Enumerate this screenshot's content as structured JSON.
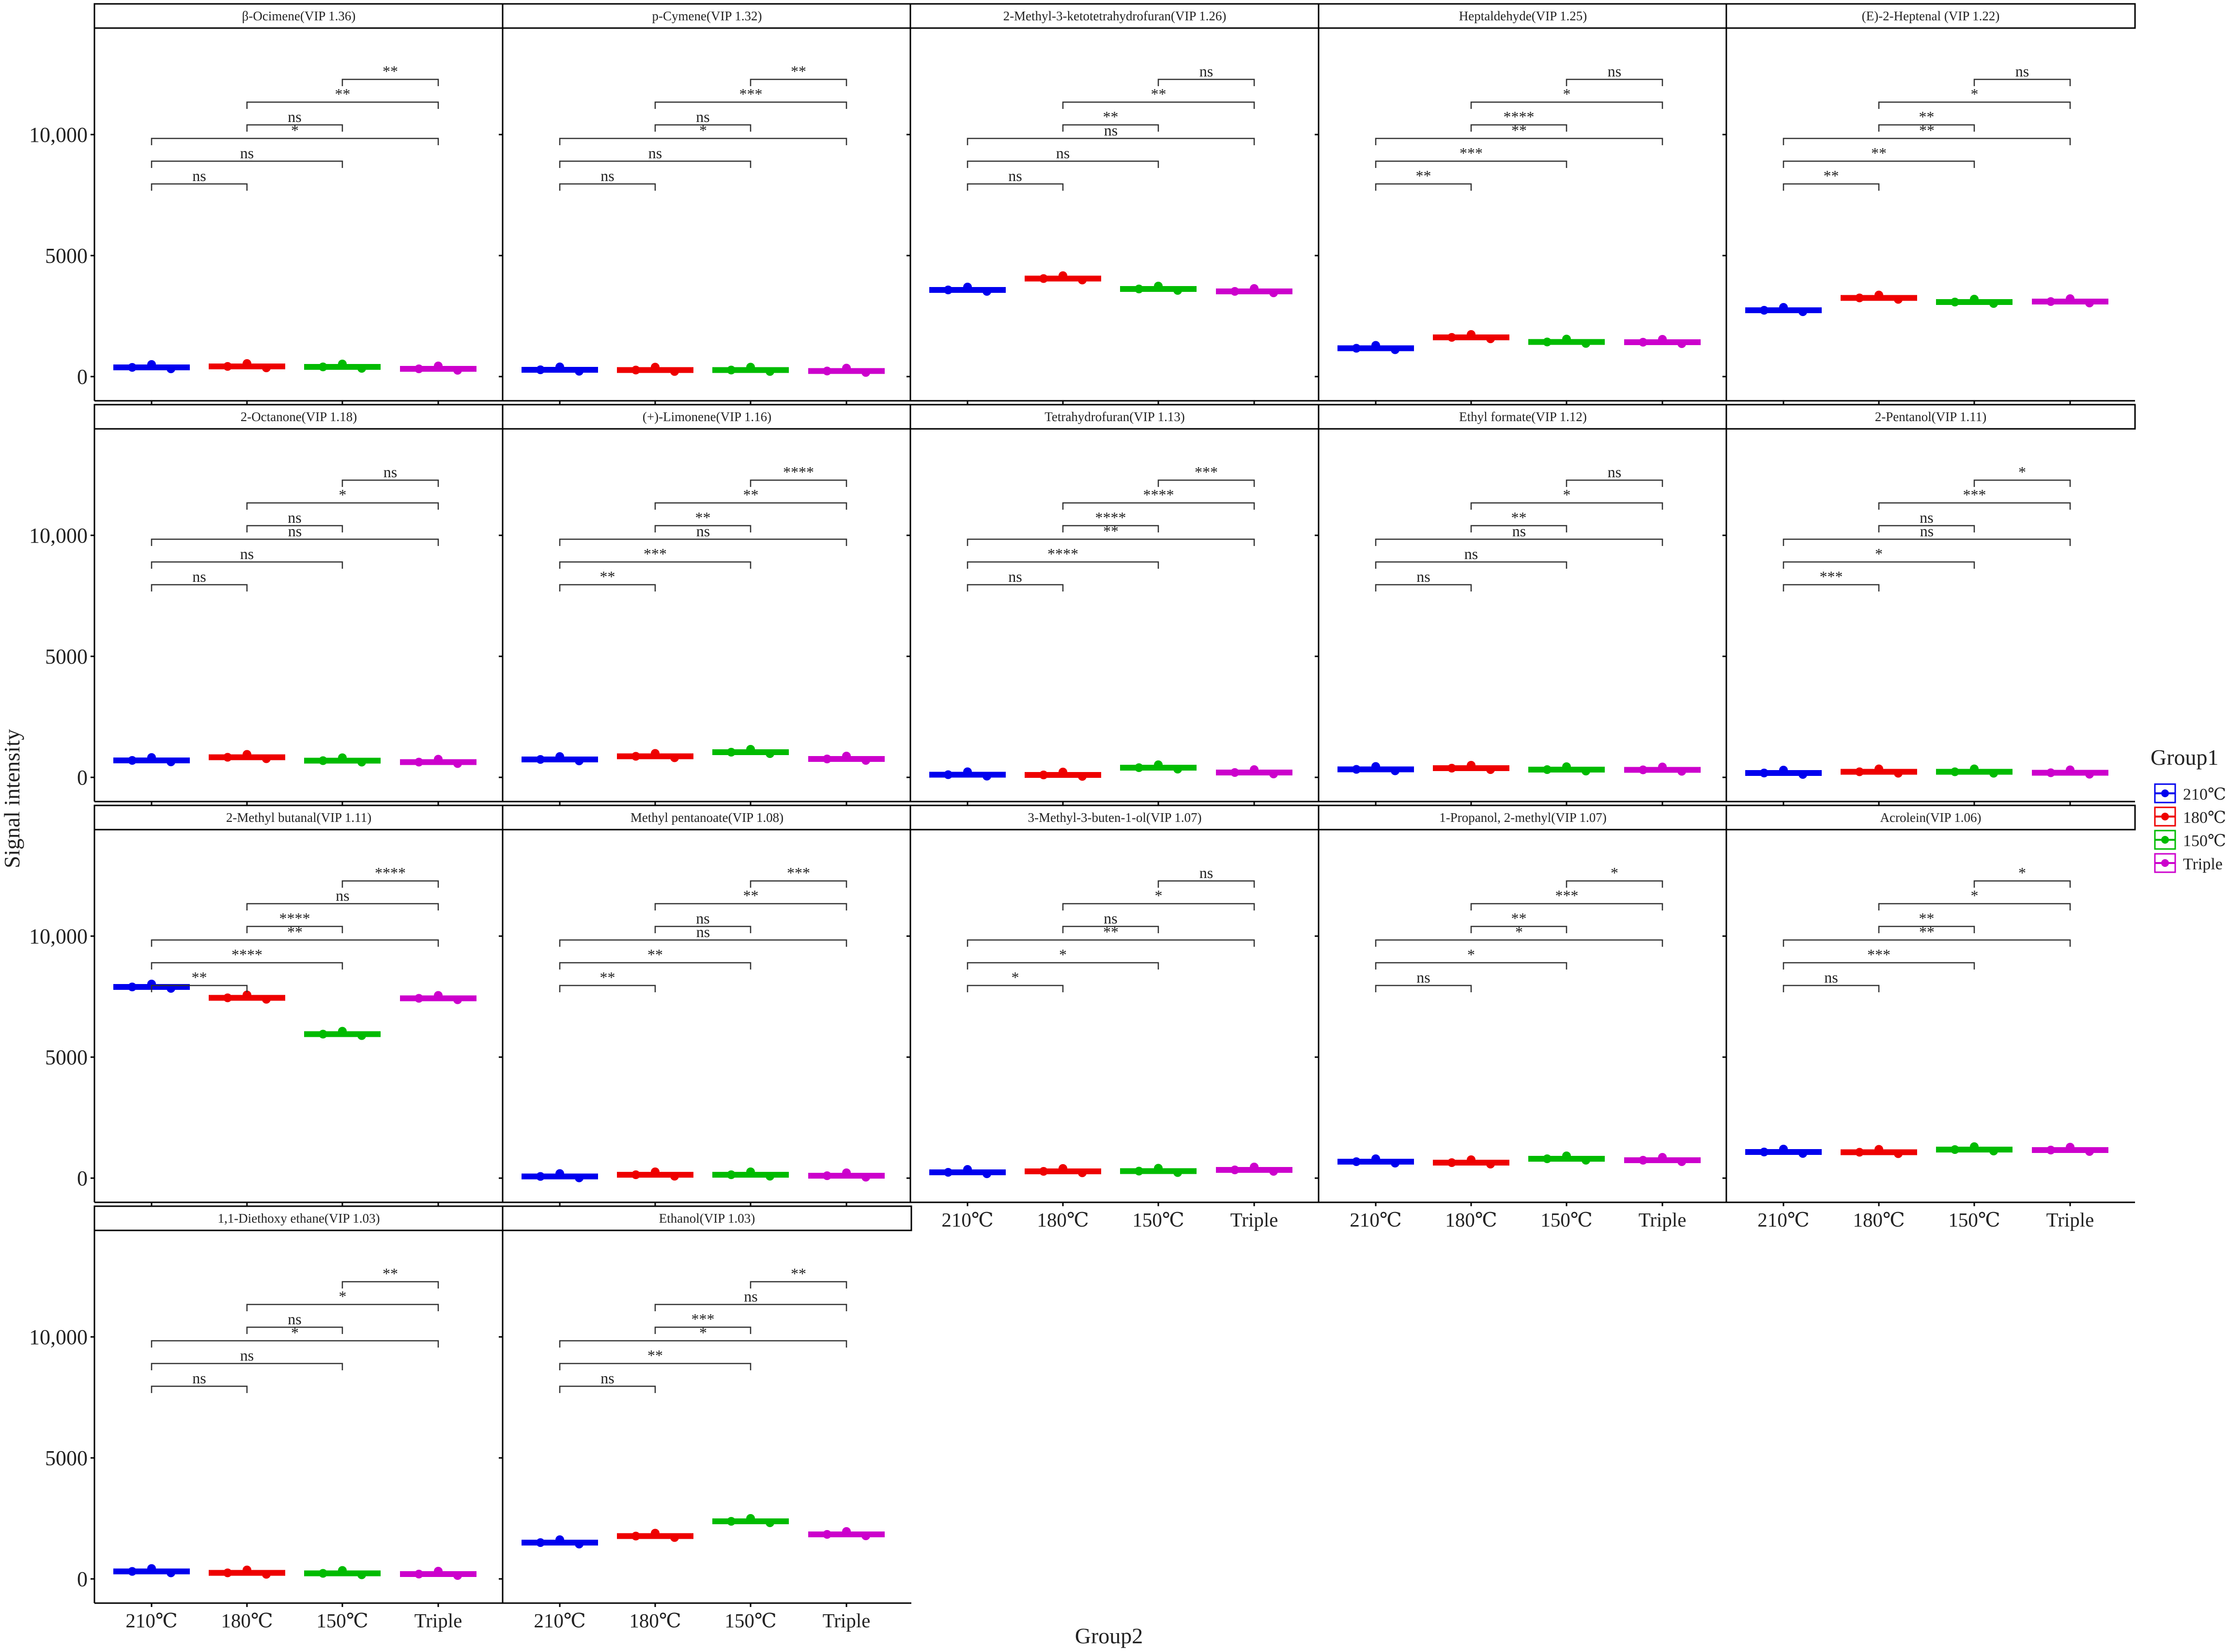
{
  "chart_data": {
    "type": "faceted_box_dot",
    "ylabel": "Signal intensity",
    "xlabel": "Group2",
    "y_tick_labels": [
      "0",
      "5000",
      "10,000"
    ],
    "y_ticks": [
      0,
      5000,
      10000
    ],
    "ylim": [
      -1000,
      14400
    ],
    "categories": [
      "210℃",
      "180℃",
      "150℃",
      "Triple"
    ],
    "legend": {
      "title": "Group1",
      "entries": [
        {
          "label": "210℃",
          "color": "#0000ee"
        },
        {
          "label": "180℃",
          "color": "#ee0000"
        },
        {
          "label": "150℃",
          "color": "#00bb00"
        },
        {
          "label": "Triple",
          "color": "#cc00cc"
        }
      ]
    },
    "comparison_pairs": [
      [
        0,
        1
      ],
      [
        0,
        2
      ],
      [
        0,
        3
      ],
      [
        1,
        2
      ],
      [
        1,
        3
      ],
      [
        2,
        3
      ]
    ],
    "panels": [
      {
        "title": "β-Ocimene(VIP 1.36)",
        "values": [
          380,
          420,
          400,
          320
        ],
        "sig": [
          "ns",
          "ns",
          "*",
          "ns",
          "**",
          "**"
        ]
      },
      {
        "title": "p-Cymene(VIP 1.32)",
        "values": [
          280,
          270,
          270,
          230
        ],
        "sig": [
          "ns",
          "ns",
          "*",
          "ns",
          "***",
          "**"
        ]
      },
      {
        "title": "2-Methyl-3-ketotetrahydrofuran(VIP 1.26)",
        "values": [
          3580,
          4050,
          3620,
          3520
        ],
        "sig": [
          "ns",
          "ns",
          "ns",
          "**",
          "**",
          "ns"
        ]
      },
      {
        "title": "Heptaldehyde(VIP 1.25)",
        "values": [
          1170,
          1620,
          1430,
          1420
        ],
        "sig": [
          "**",
          "***",
          "**",
          "****",
          "*",
          "ns"
        ]
      },
      {
        "title": "(E)-2-Heptenal (VIP 1.22)",
        "values": [
          2740,
          3250,
          3080,
          3100
        ],
        "sig": [
          "**",
          "**",
          "**",
          "**",
          "*",
          "ns"
        ]
      },
      {
        "title": "2-Octanone(VIP 1.18)",
        "values": [
          700,
          830,
          690,
          630
        ],
        "sig": [
          "ns",
          "ns",
          "ns",
          "ns",
          "*",
          "ns"
        ]
      },
      {
        "title": "(+)-Limonene(VIP 1.16)",
        "values": [
          740,
          870,
          1040,
          760
        ],
        "sig": [
          "**",
          "***",
          "ns",
          "**",
          "**",
          "****"
        ]
      },
      {
        "title": "Tetrahydrofuran(VIP 1.13)",
        "values": [
          110,
          100,
          400,
          200
        ],
        "sig": [
          "ns",
          "****",
          "**",
          "****",
          "****",
          "***"
        ]
      },
      {
        "title": "Ethyl formate(VIP 1.12)",
        "values": [
          330,
          380,
          320,
          310
        ],
        "sig": [
          "ns",
          "ns",
          "ns",
          "**",
          "*",
          "ns"
        ]
      },
      {
        "title": "2-Pentanol(VIP 1.11)",
        "values": [
          180,
          230,
          230,
          190
        ],
        "sig": [
          "***",
          "*",
          "ns",
          "ns",
          "***",
          "*"
        ]
      },
      {
        "title": "2-Methyl butanal(VIP 1.11)",
        "values": [
          7900,
          7450,
          5950,
          7430
        ],
        "sig": [
          "**",
          "****",
          "**",
          "****",
          "ns",
          "****"
        ]
      },
      {
        "title": "Methyl pentanoate(VIP 1.08)",
        "values": [
          70,
          140,
          140,
          100
        ],
        "sig": [
          "**",
          "**",
          "ns",
          "ns",
          "**",
          "***"
        ]
      },
      {
        "title": "3-Methyl-3-buten-1-ol(VIP 1.07)",
        "values": [
          240,
          280,
          290,
          340
        ],
        "sig": [
          "*",
          "*",
          "**",
          "ns",
          "*",
          "ns"
        ]
      },
      {
        "title": "1-Propanol, 2-methyl(VIP 1.07)",
        "values": [
          680,
          640,
          800,
          740
        ],
        "sig": [
          "ns",
          "*",
          "*",
          "**",
          "***",
          "*"
        ]
      },
      {
        "title": "Acrolein(VIP 1.06)",
        "values": [
          1080,
          1070,
          1180,
          1160
        ],
        "sig": [
          "ns",
          "***",
          "**",
          "**",
          "*",
          "*"
        ]
      },
      {
        "title": "1,1-Diethoxy ethane(VIP 1.03)",
        "values": [
          310,
          250,
          230,
          200
        ],
        "sig": [
          "ns",
          "ns",
          "*",
          "ns",
          "*",
          "**"
        ]
      },
      {
        "title": "Ethanol(VIP 1.03)",
        "values": [
          1500,
          1770,
          2380,
          1840
        ],
        "sig": [
          "ns",
          "**",
          "*",
          "***",
          "ns",
          "**"
        ]
      }
    ]
  }
}
